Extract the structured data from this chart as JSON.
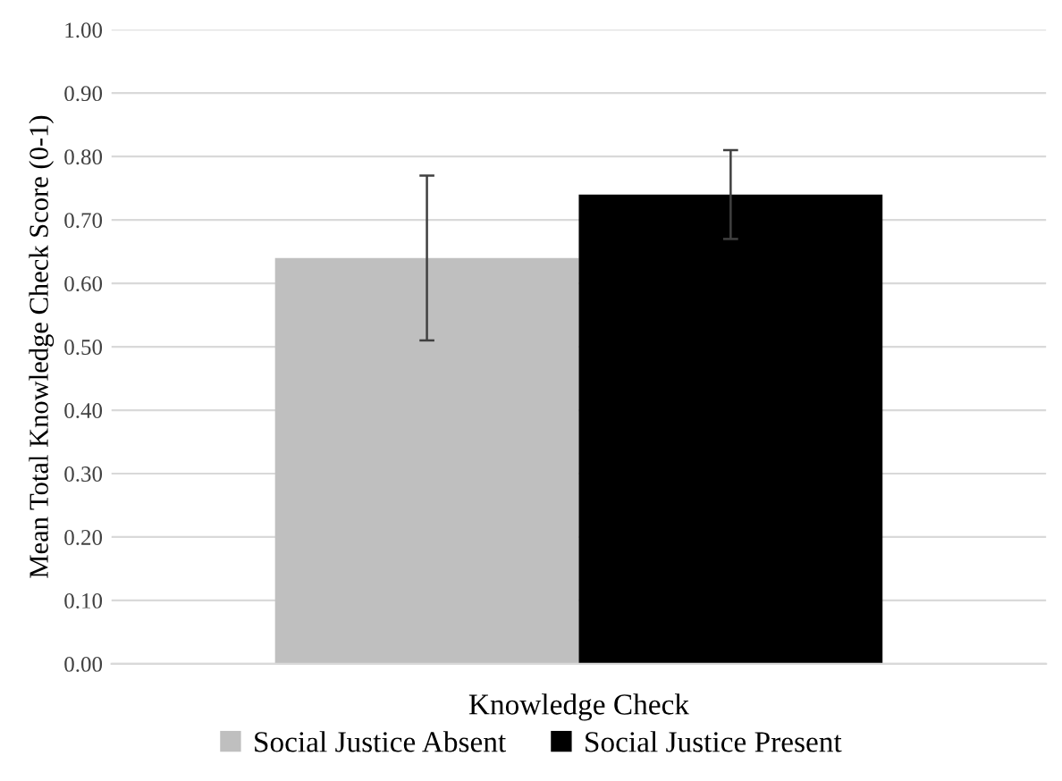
{
  "chart_data": {
    "type": "bar",
    "ylabel": "Mean Total Knowledge Check Score (0-1)",
    "categories": [
      "Knowledge Check"
    ],
    "series": [
      {
        "name": "Social Justice Absent",
        "color": "#bfbfbf",
        "values": [
          0.64
        ],
        "errors": [
          0.13
        ]
      },
      {
        "name": "Social Justice Present",
        "color": "#000000",
        "values": [
          0.74
        ],
        "errors": [
          0.07
        ]
      }
    ],
    "ylim": [
      0,
      1
    ],
    "yticks": [
      {
        "value": 0,
        "label": "0.00"
      },
      {
        "value": 0.1,
        "label": "0.10"
      },
      {
        "value": 0.2,
        "label": "0.20"
      },
      {
        "value": 0.3,
        "label": "0.30"
      },
      {
        "value": 0.4,
        "label": "0.40"
      },
      {
        "value": 0.5,
        "label": "0.50"
      },
      {
        "value": 0.6,
        "label": "0.60"
      },
      {
        "value": 0.7,
        "label": "0.70"
      },
      {
        "value": 0.8,
        "label": "0.80"
      },
      {
        "value": 0.9,
        "label": "0.90"
      },
      {
        "value": 1,
        "label": "1.00"
      }
    ],
    "grid": "y",
    "legend": "bottom"
  }
}
